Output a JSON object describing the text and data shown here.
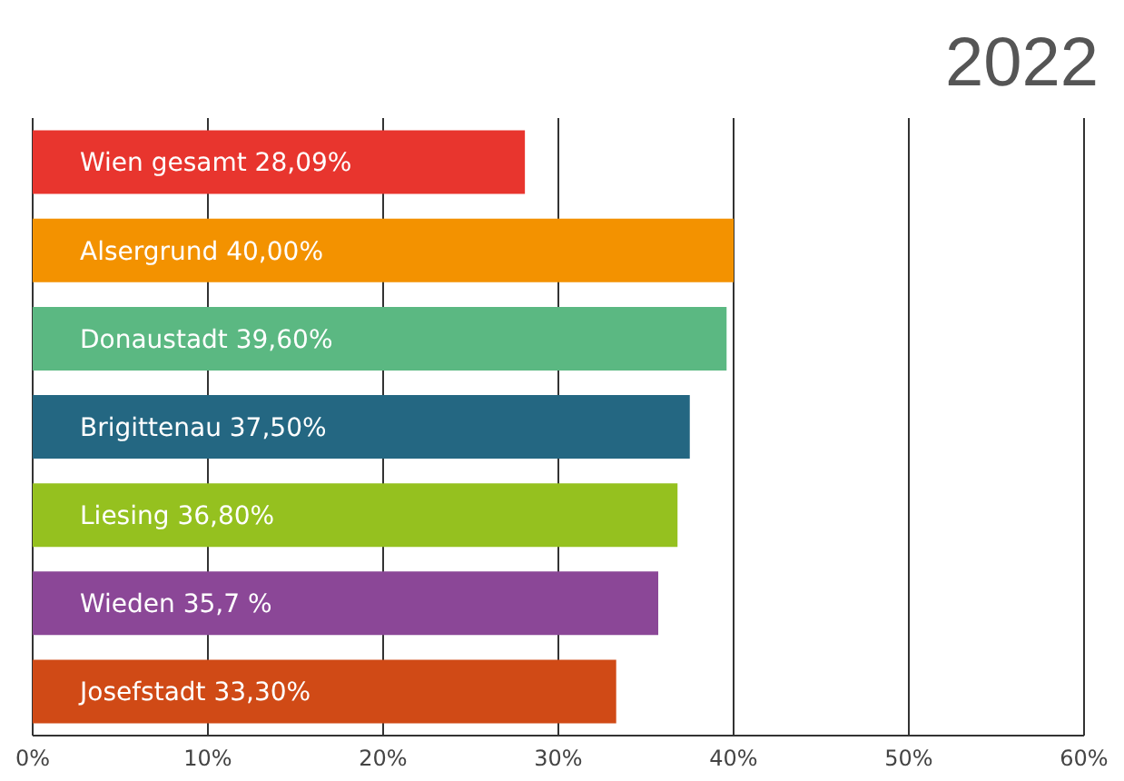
{
  "chart_data": {
    "type": "bar",
    "orientation": "horizontal",
    "title": "2022",
    "categories": [
      "Wien gesamt",
      "Alsergrund",
      "Donaustadt",
      "Brigittenau",
      "Liesing",
      "Wieden",
      "Josefstadt"
    ],
    "values": [
      28.09,
      40.0,
      39.6,
      37.5,
      36.8,
      35.7,
      33.3
    ],
    "value_labels": [
      "28,09%",
      "40,00%",
      "39,60%",
      "37,50%",
      "36,80%",
      "35,7 %",
      "33,30%"
    ],
    "colors": [
      "#e8352e",
      "#f39200",
      "#5bb882",
      "#246782",
      "#95c11f",
      "#8b4797",
      "#d04a16"
    ],
    "xlim": [
      0,
      60
    ],
    "xticks": [
      {
        "value": 0,
        "label": "0%"
      },
      {
        "value": 10,
        "label": "10%"
      },
      {
        "value": 20,
        "label": "20%"
      },
      {
        "value": 30,
        "label": "30%"
      },
      {
        "value": 40,
        "label": "40%"
      },
      {
        "value": 50,
        "label": "50%"
      },
      {
        "value": 60,
        "label": "60%"
      }
    ],
    "grid": "x",
    "tick_labels": "x"
  }
}
